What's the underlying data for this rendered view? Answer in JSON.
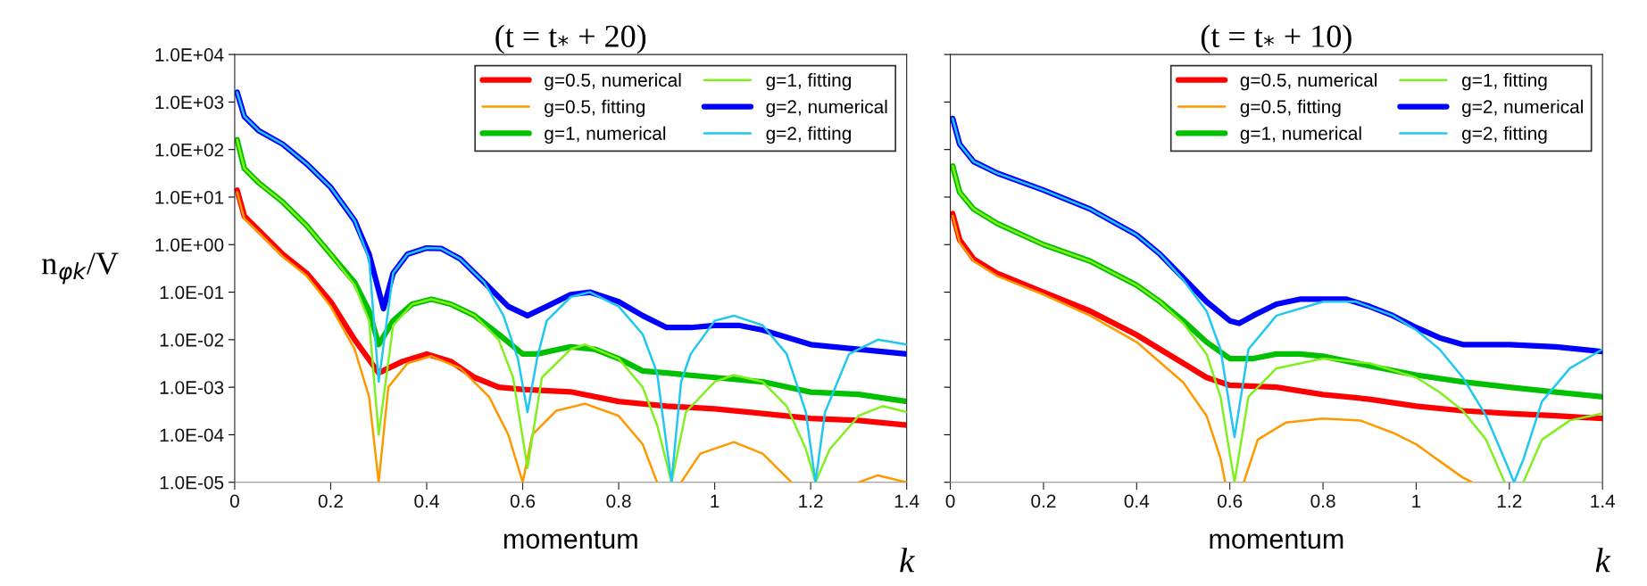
{
  "chart_data": [
    {
      "type": "line",
      "title": "(t = t$_{*}$ + 20)",
      "xlabel": "momentum",
      "ylabel": "n$_{φk}$/V",
      "annotations": [
        "k"
      ],
      "log": "y",
      "legend": "top right",
      "grid": false,
      "xlim": [
        0,
        1.4
      ],
      "xticks": [
        0,
        0.2,
        0.4,
        0.6,
        0.8,
        1,
        1.2,
        1.4
      ],
      "ylim": [
        1e-05,
        10000
      ],
      "yticks": [
        {
          "value": 1e-05,
          "label": "1.0E-05"
        },
        {
          "value": 0.0001,
          "label": "1.0E-04"
        },
        {
          "value": 0.001,
          "label": "1.0E-03"
        },
        {
          "value": 0.01,
          "label": "1.0E-02"
        },
        {
          "value": 0.1,
          "label": "1.0E-01"
        },
        {
          "value": 1,
          "label": "1.0E+00"
        },
        {
          "value": 10,
          "label": "1.0E+01"
        },
        {
          "value": 100,
          "label": "1.0E+02"
        },
        {
          "value": 1000,
          "label": "1.0E+03"
        },
        {
          "value": 10000,
          "label": "1.0E+04"
        }
      ],
      "series": [
        {
          "name": "g=0.5, numerical",
          "color": "#ff0000",
          "x": [
            0.005,
            0.02,
            0.05,
            0.1,
            0.15,
            0.2,
            0.25,
            0.3,
            0.35,
            0.4,
            0.45,
            0.5,
            0.55,
            0.6,
            0.7,
            0.8,
            0.9,
            1.0,
            1.1,
            1.2,
            1.3,
            1.4
          ],
          "values": [
            14,
            4,
            2,
            0.63,
            0.25,
            0.063,
            0.01,
            0.002,
            0.0035,
            0.005,
            0.0035,
            0.0016,
            0.001,
            0.0009,
            0.0008,
            0.0005,
            0.0004,
            0.00035,
            0.00028,
            0.00022,
            0.0002,
            0.00016
          ]
        },
        {
          "name": "g=0.5, fitting",
          "color": "#ff9900",
          "x": [
            0.005,
            0.02,
            0.05,
            0.1,
            0.15,
            0.2,
            0.25,
            0.28,
            0.3,
            0.32,
            0.36,
            0.41,
            0.47,
            0.53,
            0.57,
            0.6,
            0.62,
            0.67,
            0.73,
            0.8,
            0.85,
            0.88,
            0.9,
            0.93,
            0.97,
            1.04,
            1.1,
            1.16,
            1.2,
            1.3,
            1.34,
            1.4
          ],
          "values": [
            12.6,
            3.5,
            1.8,
            0.56,
            0.22,
            0.05,
            0.0063,
            0.00063,
            1e-05,
            0.001,
            0.0032,
            0.0045,
            0.0025,
            0.00063,
            0.0001,
            1e-05,
            0.0001,
            0.00032,
            0.00045,
            0.00025,
            6.3e-05,
            1e-05,
            null,
            1e-05,
            4e-05,
            7e-05,
            4e-05,
            1e-05,
            null,
            1e-05,
            1.4e-05,
            1e-05
          ]
        },
        {
          "name": "g=1, numerical",
          "color": "#00c000",
          "x": [
            0.005,
            0.02,
            0.05,
            0.1,
            0.15,
            0.2,
            0.25,
            0.28,
            0.3,
            0.33,
            0.37,
            0.41,
            0.45,
            0.5,
            0.55,
            0.6,
            0.63,
            0.7,
            0.75,
            0.8,
            0.85,
            0.9,
            1.0,
            1.1,
            1.2,
            1.3,
            1.4
          ],
          "values": [
            160,
            40,
            20,
            7.9,
            2.5,
            0.63,
            0.16,
            0.04,
            0.0079,
            0.025,
            0.056,
            0.071,
            0.056,
            0.032,
            0.013,
            0.005,
            0.005,
            0.0071,
            0.0063,
            0.004,
            0.0022,
            0.002,
            0.0016,
            0.0013,
            0.00079,
            0.00071,
            0.0005
          ]
        },
        {
          "name": "g=1, fitting",
          "color": "#80f020",
          "x": [
            0.005,
            0.02,
            0.05,
            0.1,
            0.15,
            0.2,
            0.25,
            0.28,
            0.3,
            0.33,
            0.37,
            0.41,
            0.45,
            0.5,
            0.55,
            0.58,
            0.61,
            0.64,
            0.7,
            0.73,
            0.8,
            0.85,
            0.88,
            0.91,
            0.94,
            1.0,
            1.04,
            1.1,
            1.15,
            1.19,
            1.21,
            1.24,
            1.3,
            1.35,
            1.4
          ],
          "values": [
            160,
            40,
            20,
            7.9,
            2.5,
            0.63,
            0.14,
            0.025,
            0.0001,
            0.02,
            0.056,
            0.071,
            0.056,
            0.032,
            0.01,
            0.0016,
            2e-05,
            0.0016,
            0.0063,
            0.0079,
            0.004,
            0.001,
            0.00016,
            1e-05,
            0.0003,
            0.0013,
            0.0018,
            0.0013,
            0.0004,
            5e-05,
            1e-05,
            5e-05,
            0.00025,
            0.0004,
            0.0003
          ]
        },
        {
          "name": "g=2, numerical",
          "color": "#0000ff",
          "x": [
            0.005,
            0.02,
            0.05,
            0.1,
            0.15,
            0.2,
            0.25,
            0.28,
            0.31,
            0.33,
            0.36,
            0.4,
            0.43,
            0.47,
            0.52,
            0.57,
            0.61,
            0.65,
            0.7,
            0.74,
            0.8,
            0.85,
            0.9,
            0.95,
            1.0,
            1.05,
            1.1,
            1.2,
            1.3,
            1.4
          ],
          "values": [
            1600,
            500,
            250,
            130,
            50,
            16,
            3.2,
            0.63,
            0.045,
            0.25,
            0.63,
            0.85,
            0.83,
            0.5,
            0.16,
            0.05,
            0.032,
            0.05,
            0.089,
            0.1,
            0.063,
            0.032,
            0.018,
            0.018,
            0.02,
            0.02,
            0.016,
            0.0079,
            0.0063,
            0.005
          ]
        },
        {
          "name": "g=2, fitting",
          "color": "#20c8f0",
          "x": [
            0.005,
            0.02,
            0.05,
            0.1,
            0.15,
            0.2,
            0.25,
            0.28,
            0.3,
            0.33,
            0.36,
            0.4,
            0.43,
            0.47,
            0.52,
            0.56,
            0.59,
            0.61,
            0.63,
            0.65,
            0.7,
            0.74,
            0.8,
            0.85,
            0.88,
            0.91,
            0.93,
            0.95,
            1.0,
            1.04,
            1.1,
            1.15,
            1.19,
            1.21,
            1.23,
            1.28,
            1.34,
            1.4
          ],
          "values": [
            1600,
            500,
            250,
            130,
            50,
            16,
            3.2,
            0.5,
            0.0013,
            0.25,
            0.63,
            0.85,
            0.83,
            0.5,
            0.16,
            0.032,
            0.004,
            0.0003,
            0.004,
            0.025,
            0.079,
            0.1,
            0.05,
            0.013,
            0.002,
            1e-05,
            0.0013,
            0.005,
            0.025,
            0.032,
            0.02,
            0.005,
            0.0003,
            1e-05,
            0.0003,
            0.005,
            0.01,
            0.0079
          ]
        }
      ]
    },
    {
      "type": "line",
      "title": "(t = t$_{*}$ + 10)",
      "xlabel": "momentum",
      "annotations": [
        "k"
      ],
      "log": "y",
      "legend": "top right",
      "grid": false,
      "tick_labels": "x",
      "xlim": [
        0,
        1.4
      ],
      "xticks": [
        0,
        0.2,
        0.4,
        0.6,
        0.8,
        1,
        1.2,
        1.4
      ],
      "ylim": [
        1e-05,
        10000
      ],
      "yticks": [
        {
          "value": 1e-05,
          "label": null
        },
        {
          "value": 0.0001,
          "label": null
        },
        {
          "value": 0.001,
          "label": null
        },
        {
          "value": 0.01,
          "label": null
        },
        {
          "value": 0.1,
          "label": null
        },
        {
          "value": 1,
          "label": null
        },
        {
          "value": 10,
          "label": null
        },
        {
          "value": 100,
          "label": null
        },
        {
          "value": 1000,
          "label": null
        },
        {
          "value": 10000,
          "label": null
        }
      ],
      "series": [
        {
          "name": "g=0.5, numerical",
          "color": "#ff0000",
          "x": [
            0.005,
            0.02,
            0.05,
            0.1,
            0.2,
            0.3,
            0.4,
            0.45,
            0.5,
            0.55,
            0.6,
            0.7,
            0.8,
            0.9,
            1.0,
            1.1,
            1.2,
            1.3,
            1.4
          ],
          "values": [
            4.5,
            1.26,
            0.5,
            0.25,
            0.1,
            0.04,
            0.0126,
            0.0063,
            0.0032,
            0.0016,
            0.0011,
            0.001,
            0.0007,
            0.00056,
            0.0004,
            0.00032,
            0.00028,
            0.00025,
            0.00022
          ]
        },
        {
          "name": "g=0.5, fitting",
          "color": "#ff9900",
          "x": [
            0.005,
            0.02,
            0.05,
            0.1,
            0.2,
            0.3,
            0.4,
            0.5,
            0.55,
            0.58,
            0.59,
            0.61,
            0.63,
            0.66,
            0.72,
            0.8,
            0.88,
            0.95,
            1.0,
            1.05,
            1.1,
            1.12
          ],
          "values": [
            4.0,
            1.1,
            0.45,
            0.22,
            0.089,
            0.032,
            0.0089,
            0.00126,
            0.00025,
            3.2e-05,
            1e-05,
            null,
            1e-05,
            7.9e-05,
            0.00018,
            0.00022,
            0.0002,
            0.00011,
            6.3e-05,
            2.8e-05,
            1.26e-05,
            1e-05
          ]
        },
        {
          "name": "g=1, numerical",
          "color": "#00c000",
          "x": [
            0.005,
            0.02,
            0.05,
            0.1,
            0.2,
            0.3,
            0.4,
            0.45,
            0.5,
            0.55,
            0.6,
            0.65,
            0.7,
            0.75,
            0.8,
            0.9,
            1.0,
            1.1,
            1.2,
            1.3,
            1.4
          ],
          "values": [
            45,
            12.6,
            5.6,
            2.8,
            1.0,
            0.45,
            0.14,
            0.063,
            0.025,
            0.0089,
            0.004,
            0.004,
            0.005,
            0.005,
            0.0045,
            0.0028,
            0.0018,
            0.0013,
            0.001,
            0.00079,
            0.00063
          ]
        },
        {
          "name": "g=1, fitting",
          "color": "#80f020",
          "x": [
            0.005,
            0.02,
            0.05,
            0.1,
            0.2,
            0.3,
            0.4,
            0.45,
            0.5,
            0.55,
            0.58,
            0.61,
            0.64,
            0.7,
            0.8,
            0.9,
            1.0,
            1.05,
            1.1,
            1.15,
            1.19,
            1.21,
            1.23,
            1.27,
            1.33,
            1.4
          ],
          "values": [
            45,
            12.6,
            5.6,
            2.8,
            1.0,
            0.45,
            0.14,
            0.063,
            0.022,
            0.005,
            0.00063,
            1e-05,
            0.00063,
            0.0025,
            0.004,
            0.0032,
            0.0016,
            0.00079,
            0.00032,
            7.9e-05,
            1e-05,
            null,
            1e-05,
            7.9e-05,
            0.0002,
            0.00028
          ]
        },
        {
          "name": "g=2, numerical",
          "color": "#0000ff",
          "x": [
            0.005,
            0.02,
            0.05,
            0.1,
            0.2,
            0.3,
            0.4,
            0.45,
            0.5,
            0.55,
            0.6,
            0.62,
            0.65,
            0.7,
            0.75,
            0.8,
            0.85,
            0.9,
            0.95,
            1.0,
            1.05,
            1.1,
            1.2,
            1.3,
            1.4
          ],
          "values": [
            450,
            130,
            56,
            32,
            14,
            5.6,
            1.6,
            0.63,
            0.2,
            0.063,
            0.025,
            0.022,
            0.032,
            0.056,
            0.071,
            0.071,
            0.071,
            0.05,
            0.032,
            0.018,
            0.011,
            0.0079,
            0.0079,
            0.0071,
            0.0056
          ]
        },
        {
          "name": "g=2, fitting",
          "color": "#20c8f0",
          "x": [
            0.005,
            0.02,
            0.05,
            0.1,
            0.2,
            0.3,
            0.4,
            0.45,
            0.5,
            0.55,
            0.58,
            0.61,
            0.64,
            0.7,
            0.8,
            0.87,
            0.95,
            1.0,
            1.05,
            1.1,
            1.15,
            1.19,
            1.21,
            1.23,
            1.27,
            1.33,
            1.4
          ],
          "values": [
            450,
            130,
            56,
            32,
            14,
            5.6,
            1.6,
            0.63,
            0.18,
            0.04,
            0.0063,
            8.9e-05,
            0.0063,
            0.032,
            0.063,
            0.063,
            0.032,
            0.016,
            0.0063,
            0.0016,
            0.00025,
            3e-05,
            1e-05,
            3e-05,
            0.0005,
            0.0025,
            0.0063
          ]
        }
      ]
    }
  ]
}
